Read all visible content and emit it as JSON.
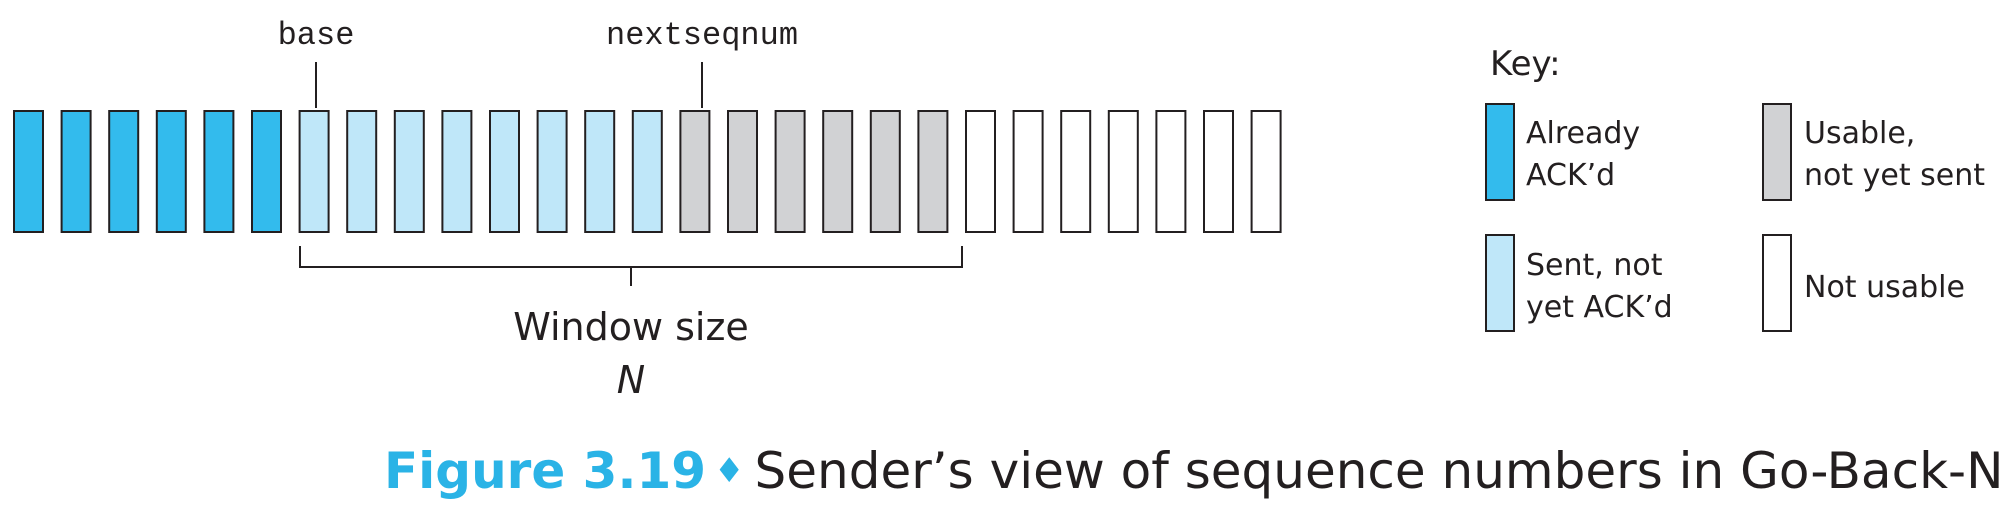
{
  "pointers": {
    "base": "base",
    "nextseqnum": "nextseqnum"
  },
  "window": {
    "label": "Window size",
    "symbol": "N"
  },
  "key": {
    "title": "Key:",
    "already_acked": [
      "Already",
      "ACK’d"
    ],
    "sent_not_acked": [
      "Sent, not",
      "yet ACK’d"
    ],
    "usable_not_sent": [
      "Usable,",
      "not yet sent"
    ],
    "not_usable": "Not usable"
  },
  "colors": {
    "already_acked": "#33bbed",
    "sent_not_acked": "#bfe7f9",
    "usable_not_sent": "#d1d2d4",
    "not_usable": "#ffffff",
    "accent": "#2ab3e6"
  },
  "sequence": [
    "already_acked",
    "already_acked",
    "already_acked",
    "already_acked",
    "already_acked",
    "already_acked",
    "sent_not_acked",
    "sent_not_acked",
    "sent_not_acked",
    "sent_not_acked",
    "sent_not_acked",
    "sent_not_acked",
    "sent_not_acked",
    "sent_not_acked",
    "usable_not_sent",
    "usable_not_sent",
    "usable_not_sent",
    "usable_not_sent",
    "usable_not_sent",
    "usable_not_sent",
    "not_usable",
    "not_usable",
    "not_usable",
    "not_usable",
    "not_usable",
    "not_usable",
    "not_usable"
  ],
  "caption": {
    "number": "Figure 3.19",
    "symbol": "♦",
    "text": "Sender’s view of sequence numbers in Go-Back-N"
  }
}
